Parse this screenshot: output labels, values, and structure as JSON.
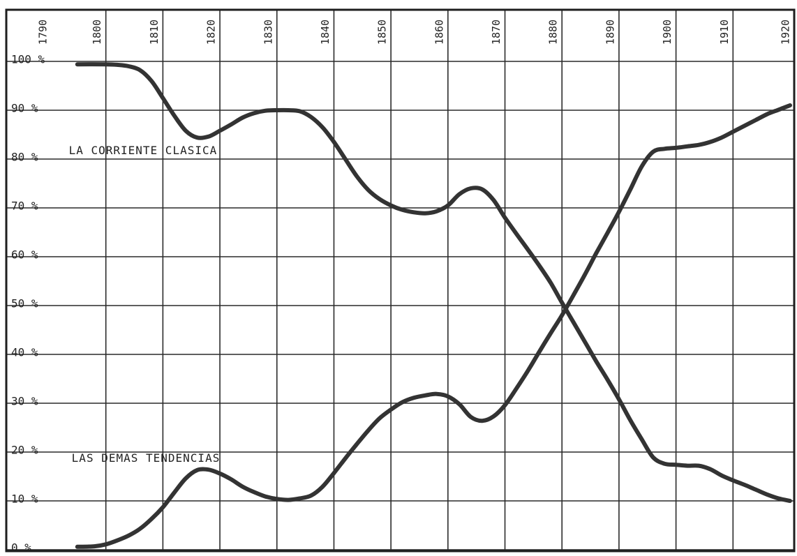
{
  "chart_data": {
    "type": "line",
    "x_ticks": [
      1790,
      1800,
      1810,
      1820,
      1830,
      1840,
      1850,
      1860,
      1870,
      1880,
      1890,
      1900,
      1910,
      1920
    ],
    "x_tick_labels": [
      "1790",
      "1800",
      "1810",
      "1820",
      "1830",
      "1840",
      "1850",
      "1860",
      "1870",
      "1880",
      "1890",
      "1900",
      "1910",
      "1920"
    ],
    "y_ticks": [
      0,
      10,
      20,
      30,
      40,
      50,
      60,
      70,
      80,
      90,
      100
    ],
    "y_tick_labels": [
      "0 %",
      "10 %",
      "20 %",
      "30 %",
      "40 %",
      "50 %",
      "60 %",
      "70 %",
      "80 %",
      "90 %",
      "100 %"
    ],
    "xlim": [
      1790,
      1920
    ],
    "ylim": [
      0,
      100
    ],
    "grid": true,
    "annotations": [
      {
        "text": "LA CORRIENTE CLASICA",
        "x": 1793.5,
        "y": 81
      },
      {
        "text": "LAS DEMAS TENDENCIAS",
        "x": 1794,
        "y": 18
      }
    ],
    "series": [
      {
        "name": "LA CORRIENTE CLASICA",
        "x": [
          1795,
          1800,
          1802,
          1804,
          1806,
          1808,
          1810,
          1812,
          1814,
          1816,
          1818,
          1820,
          1822,
          1824,
          1826,
          1828,
          1830,
          1832,
          1834,
          1836,
          1838,
          1840,
          1842,
          1844,
          1846,
          1848,
          1850,
          1852,
          1854,
          1856,
          1858,
          1860,
          1862,
          1864,
          1866,
          1868,
          1870,
          1872,
          1874,
          1876,
          1878,
          1880,
          1882,
          1884,
          1886,
          1888,
          1890,
          1892,
          1894,
          1896,
          1898,
          1900,
          1902,
          1904,
          1906,
          1908,
          1910,
          1912,
          1914,
          1916,
          1918,
          1920
        ],
        "y": [
          99.4,
          99.4,
          99.3,
          99,
          98.2,
          96,
          92.5,
          88.9,
          85.8,
          84.4,
          84.6,
          85.8,
          87.1,
          88.5,
          89.4,
          89.9,
          90,
          90,
          89.8,
          88.6,
          86.5,
          83.5,
          80,
          76.5,
          73.7,
          71.8,
          70.5,
          69.6,
          69.1,
          68.9,
          69.3,
          70.5,
          72.8,
          74,
          73.8,
          71.6,
          68,
          64.7,
          61.5,
          58.2,
          54.7,
          50.6,
          46.6,
          42.6,
          38.6,
          34.8,
          30.8,
          26.5,
          22.6,
          18.9,
          17.6,
          17.4,
          17.2,
          17.2,
          16.5,
          15.2,
          14.2,
          13.3,
          12.3,
          11.3,
          10.5,
          10
        ]
      },
      {
        "name": "LAS DEMAS TENDENCIAS",
        "x": [
          1795,
          1798,
          1800,
          1802,
          1804,
          1806,
          1808,
          1810,
          1812,
          1814,
          1816,
          1818,
          1820,
          1822,
          1824,
          1826,
          1828,
          1830,
          1832,
          1834,
          1836,
          1838,
          1840,
          1842,
          1844,
          1846,
          1848,
          1850,
          1852,
          1854,
          1856,
          1858,
          1860,
          1862,
          1864,
          1866,
          1868,
          1870,
          1872,
          1874,
          1876,
          1878,
          1880,
          1882,
          1884,
          1886,
          1888,
          1890,
          1892,
          1894,
          1896,
          1898,
          1900,
          1902,
          1904,
          1906,
          1908,
          1910,
          1912,
          1914,
          1916,
          1918,
          1920
        ],
        "y": [
          0.6,
          0.7,
          1.1,
          1.9,
          2.9,
          4.3,
          6.3,
          8.7,
          11.7,
          14.6,
          16.3,
          16.4,
          15.6,
          14.4,
          12.9,
          11.8,
          10.9,
          10.4,
          10.2,
          10.5,
          11.1,
          12.9,
          15.7,
          18.7,
          21.6,
          24.4,
          26.9,
          28.7,
          30.2,
          31.1,
          31.6,
          31.9,
          31.4,
          29.8,
          27.2,
          26.4,
          27.3,
          29.6,
          33,
          36.6,
          40.5,
          44.3,
          48,
          52.1,
          56.3,
          60.7,
          64.9,
          69.2,
          73.8,
          78.5,
          81.5,
          82.1,
          82.3,
          82.6,
          82.9,
          83.5,
          84.4,
          85.6,
          86.8,
          88,
          89.2,
          90.1,
          91
        ]
      }
    ]
  }
}
